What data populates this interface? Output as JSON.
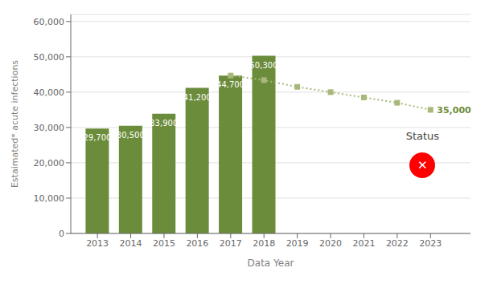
{
  "chart_data": {
    "type": "bar",
    "xlabel": "Data Year",
    "ylabel": "Estaimated* acute infections",
    "x": [
      2013,
      2014,
      2015,
      2016,
      2017,
      2018,
      2019,
      2020,
      2021,
      2022,
      2023
    ],
    "xlim": [
      2012.2,
      2024.2
    ],
    "xticks": [
      2013,
      2014,
      2015,
      2016,
      2017,
      2018,
      2019,
      2020,
      2021,
      2022,
      2023
    ],
    "ylim": [
      0,
      62000
    ],
    "yticks": [
      0,
      {
        "value": 10000,
        "label": "10,000"
      },
      {
        "value": 20000,
        "label": "20,000"
      },
      {
        "value": 30000,
        "label": "30,000"
      },
      {
        "value": 40000,
        "label": "40,000"
      },
      {
        "value": 50000,
        "label": "50,000"
      },
      {
        "value": 60000,
        "label": "60,000"
      }
    ],
    "grid": true,
    "data_labels": true,
    "series": [
      {
        "type": "bar",
        "color": "#6b8c3a",
        "values": [
          29700,
          30500,
          33900,
          41200,
          44700,
          50300,
          null,
          null,
          null,
          null,
          null
        ],
        "value_labels": [
          "29,700",
          "30,500",
          "33,900",
          "41,200",
          "44,700",
          "50,300",
          null,
          null,
          null,
          null,
          null
        ]
      },
      {
        "type": "line",
        "color": "#a8b87a",
        "line_style": "dotted",
        "marker": "square",
        "values": [
          null,
          null,
          null,
          null,
          44700,
          43400,
          41500,
          40000,
          38500,
          37000,
          35000
        ]
      }
    ],
    "annotations": [
      {
        "text": "35,000",
        "x": 2023,
        "y": 35000,
        "color": "#6b8c3a"
      },
      {
        "text": "Status"
      },
      {
        "text": "✕",
        "color": "red"
      }
    ]
  }
}
